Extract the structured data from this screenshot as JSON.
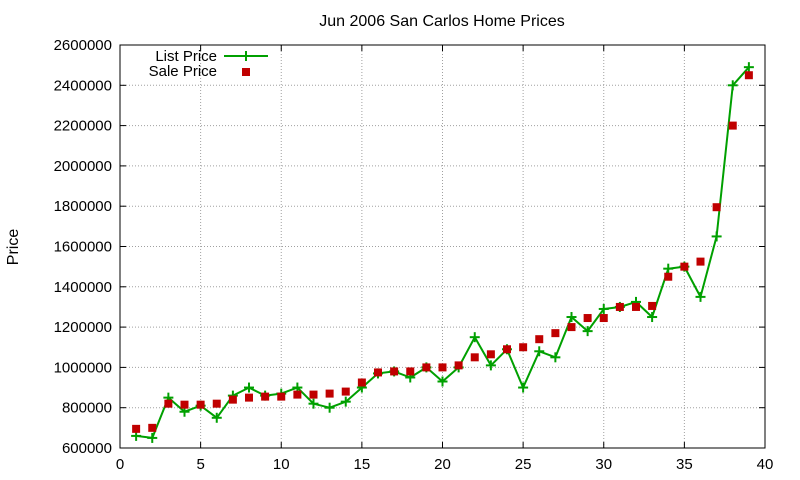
{
  "chart_data": {
    "type": "line",
    "title": "Jun 2006 San Carlos Home Prices",
    "xlabel": "",
    "ylabel": "Price",
    "xlim": [
      0,
      40
    ],
    "ylim": [
      600000,
      2600000
    ],
    "x_ticks": [
      0,
      5,
      10,
      15,
      20,
      25,
      30,
      35,
      40
    ],
    "y_ticks": [
      600000,
      800000,
      1000000,
      1200000,
      1400000,
      1600000,
      1800000,
      2000000,
      2200000,
      2400000,
      2600000
    ],
    "grid": true,
    "legend_position": "top-left",
    "series": [
      {
        "name": "List Price",
        "style": "line-plus",
        "color": "#00a000",
        "x": [
          1,
          2,
          3,
          4,
          5,
          6,
          7,
          8,
          9,
          10,
          11,
          12,
          13,
          14,
          15,
          16,
          17,
          18,
          19,
          20,
          21,
          22,
          23,
          24,
          25,
          26,
          27,
          28,
          29,
          30,
          31,
          32,
          33,
          34,
          35,
          36,
          37,
          38,
          39
        ],
        "values": [
          660000,
          650000,
          850000,
          780000,
          810000,
          750000,
          860000,
          900000,
          860000,
          870000,
          900000,
          820000,
          800000,
          830000,
          900000,
          970000,
          980000,
          950000,
          1000000,
          930000,
          1000000,
          1150000,
          1010000,
          1090000,
          900000,
          1080000,
          1050000,
          1250000,
          1180000,
          1290000,
          1300000,
          1325000,
          1250000,
          1490000,
          1500000,
          1350000,
          1650000,
          2400000,
          2490000
        ]
      },
      {
        "name": "Sale Price",
        "style": "square-points",
        "color": "#c00000",
        "x": [
          1,
          2,
          3,
          4,
          5,
          6,
          7,
          8,
          9,
          10,
          11,
          12,
          13,
          14,
          15,
          16,
          17,
          18,
          19,
          20,
          21,
          22,
          23,
          24,
          25,
          26,
          27,
          28,
          29,
          30,
          31,
          32,
          33,
          34,
          35,
          36,
          37,
          38,
          39
        ],
        "values": [
          695000,
          700000,
          820000,
          815000,
          815000,
          820000,
          840000,
          850000,
          855000,
          855000,
          865000,
          865000,
          870000,
          880000,
          925000,
          975000,
          980000,
          980000,
          1000000,
          1000000,
          1010000,
          1050000,
          1065000,
          1090000,
          1100000,
          1140000,
          1170000,
          1200000,
          1245000,
          1245000,
          1300000,
          1300000,
          1305000,
          1450000,
          1500000,
          1525000,
          1795000,
          2200000,
          2450000
        ]
      }
    ]
  }
}
